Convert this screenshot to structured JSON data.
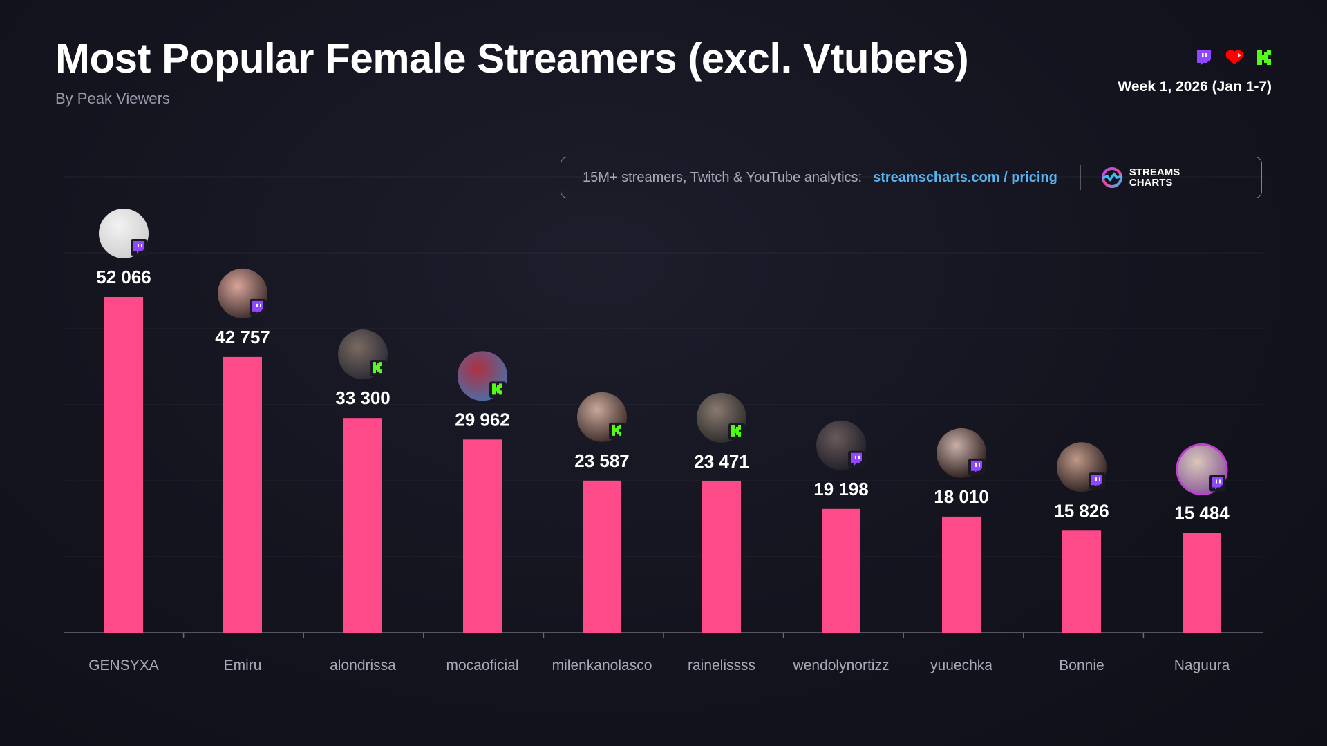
{
  "header": {
    "title": "Most Popular Female Streamers (excl. Vtubers)",
    "subtitle": "By Peak Viewers",
    "week": "Week 1, 2026 (Jan 1-7)",
    "platform_icons": [
      "twitch-icon",
      "youtube-icon",
      "kick-icon"
    ]
  },
  "banner": {
    "text": "15M+ streamers, Twitch & YouTube analytics:",
    "link": "streamscharts.com / pricing",
    "logo_line1": "STREAMS",
    "logo_line2": "CHARTS"
  },
  "colors": {
    "bar": "#ff4a8a",
    "twitch": "#9146ff",
    "kick": "#53fc18",
    "youtube": "#ff0000",
    "link": "#55b3f0"
  },
  "chart_data": {
    "type": "bar",
    "title": "Most Popular Female Streamers (excl. Vtubers)",
    "subtitle": "By Peak Viewers",
    "categories": [
      "GENSYXA",
      "Emiru",
      "alondrissa",
      "mocaoficial",
      "milenkanolasco",
      "rainelissss",
      "wendolynortizz",
      "yuuechka",
      "Bonnie",
      "Naguura"
    ],
    "values": [
      52066,
      42757,
      33300,
      29962,
      23587,
      23471,
      19198,
      18010,
      15826,
      15484
    ],
    "labels": [
      "52 066",
      "42 757",
      "33 300",
      "29 962",
      "23 587",
      "23 471",
      "19 198",
      "18 010",
      "15 826",
      "15 484"
    ],
    "platforms": [
      "twitch",
      "twitch",
      "kick",
      "kick",
      "kick",
      "kick",
      "twitch",
      "twitch",
      "twitch",
      "twitch"
    ],
    "grid": true,
    "legend": "none"
  }
}
